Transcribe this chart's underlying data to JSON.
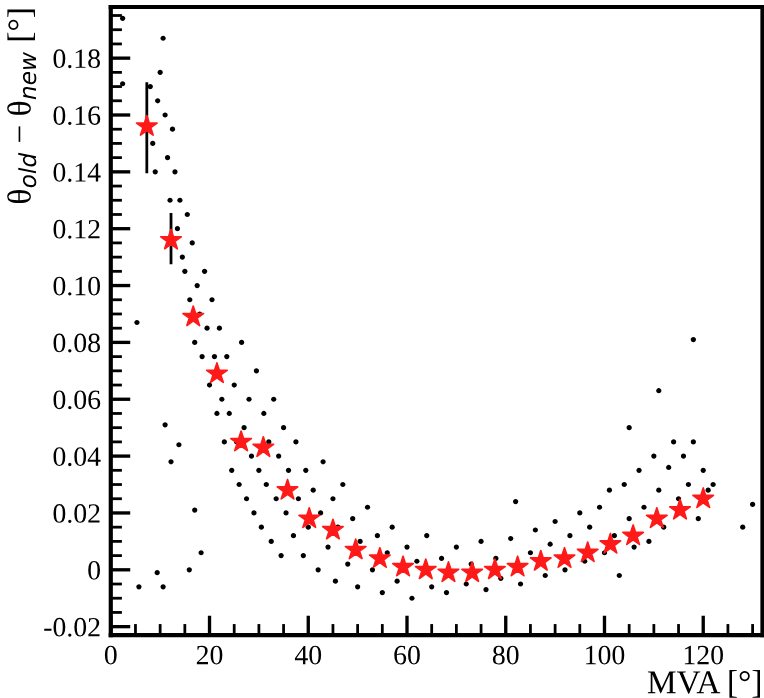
{
  "chart_data": {
    "type": "scatter",
    "xlabel": "MVA [°]",
    "ylabel": "θ$_{old}$ − θ$_{new}$ [°]",
    "xlim": [
      0,
      132
    ],
    "ylim": [
      -0.023,
      0.198
    ],
    "xticks": [
      0,
      20,
      40,
      60,
      80,
      100,
      120
    ],
    "yticks": [
      -0.02,
      0,
      0.02,
      0.04,
      0.06,
      0.08,
      {
        "value": 0.1,
        "label": "0.10"
      },
      0.12,
      0.14,
      0.16,
      0.18
    ],
    "grid": false,
    "series": [
      {
        "marker": "circle",
        "color": "#000000",
        "x": [
          2.4,
          2.4,
          10.6,
          5.3,
          5.7,
          10.6,
          9.4,
          11,
          13.8,
          12.2,
          17,
          18.3,
          15.9,
          8,
          8.5,
          9,
          9.5,
          10,
          11,
          11.5,
          12,
          12.5,
          13,
          13.5,
          14,
          14.5,
          15,
          15.5,
          16,
          16.5,
          17,
          17.5,
          18,
          18.5,
          19,
          19.5,
          20,
          20.5,
          21,
          21.5,
          22,
          22.5,
          23,
          23.5,
          24,
          24.5,
          25,
          25.5,
          26,
          26.5,
          27,
          27.5,
          28,
          28.5,
          29,
          29.5,
          30,
          30.5,
          31,
          31.5,
          32,
          32.5,
          33,
          33.5,
          34,
          34.5,
          35,
          35.5,
          36,
          37,
          37.5,
          38,
          39,
          39.5,
          40,
          41,
          42,
          42.5,
          43,
          44,
          45,
          45.5,
          46,
          47,
          48,
          49,
          50,
          50.5,
          52,
          53,
          54,
          55,
          56,
          57,
          58,
          60,
          61,
          62,
          64,
          65,
          67,
          68,
          70,
          72,
          73,
          75,
          76,
          78,
          79,
          81,
          82,
          83,
          85,
          86,
          88,
          89,
          90,
          92,
          93,
          95,
          96,
          97,
          99,
          100,
          101,
          102,
          103,
          104,
          105,
          106,
          107,
          108,
          109,
          110,
          111,
          112,
          113,
          114,
          115,
          116,
          117,
          118,
          119,
          120,
          121,
          122,
          105,
          111,
          118,
          130,
          128
        ],
        "values": [
          0.194,
          0.171,
          0.187,
          0.087,
          -0.006,
          -0.006,
          -0.001,
          0.051,
          0.044,
          0.038,
          0.021,
          0.006,
          0,
          0.17,
          0.15,
          0.14,
          0.165,
          0.175,
          0.16,
          0.145,
          0.13,
          0.155,
          0.14,
          0.12,
          0.13,
          0.11,
          0.105,
          0.125,
          0.095,
          0.115,
          0.08,
          0.1,
          0.09,
          0.075,
          0.105,
          0.085,
          0.065,
          0.095,
          0.075,
          0.055,
          0.085,
          0.06,
          0.045,
          0.075,
          0.055,
          0.035,
          0.065,
          0.045,
          0.03,
          0.08,
          0.05,
          0.025,
          0.06,
          0.04,
          0.02,
          0.07,
          0.035,
          0.015,
          0.055,
          0.03,
          0.045,
          0.01,
          0.06,
          0.025,
          0.04,
          0.005,
          0.05,
          0.02,
          0.035,
          0.012,
          0.045,
          0.025,
          0.005,
          0.035,
          0.015,
          0.028,
          0.0,
          0.02,
          0.038,
          0.008,
          0.025,
          -0.004,
          0.015,
          0.03,
          0.002,
          0.018,
          -0.006,
          0.01,
          0.022,
          0.0,
          0.012,
          -0.008,
          0.006,
          0.015,
          -0.004,
          0.008,
          -0.01,
          0.003,
          0.012,
          -0.006,
          0.004,
          -0.008,
          0.008,
          -0.005,
          0.002,
          0.01,
          -0.007,
          0.004,
          -0.003,
          0.011,
          0.024,
          -0.005,
          0.006,
          0.014,
          -0.002,
          0.009,
          0.017,
          0.0,
          0.012,
          0.02,
          0.003,
          0.015,
          0.022,
          0.006,
          0.028,
          0.012,
          -0.002,
          0.03,
          0.018,
          0.008,
          0.035,
          0.022,
          0.01,
          0.04,
          0.028,
          0.015,
          0.036,
          0.045,
          0.025,
          0.04,
          0.03,
          0.045,
          0.018,
          0.035,
          0.028,
          0.03,
          0.05,
          0.063,
          0.081,
          0.023,
          0.015
        ]
      },
      {
        "marker": "star",
        "color": "#ff1a1a",
        "x": [
          7.3,
          12.2,
          16.7,
          21.5,
          26.4,
          30.9,
          35.8,
          40.2,
          45,
          49.6,
          54.5,
          59.2,
          63.8,
          68.4,
          73.2,
          77.8,
          82.4,
          87.1,
          91.9,
          96.6,
          101.2,
          105.8,
          110.6,
          115.3,
          120
        ],
        "values": [
          0.156,
          0.116,
          0.089,
          0.069,
          0.045,
          0.043,
          0.028,
          0.018,
          0.014,
          0.007,
          0.004,
          0.001,
          0,
          -0.001,
          -0.001,
          0,
          0.001,
          0.003,
          0.004,
          0.006,
          0.009,
          0.012,
          0.018,
          0.021,
          0.025
        ],
        "errors": [
          [
            0.14,
            0.171
          ],
          [
            0.108,
            0.125
          ],
          null,
          null,
          null,
          null,
          null,
          null,
          null,
          null,
          null,
          null,
          null,
          null,
          null,
          null,
          null,
          null,
          null,
          null,
          null,
          null,
          null,
          null,
          null
        ]
      }
    ]
  }
}
